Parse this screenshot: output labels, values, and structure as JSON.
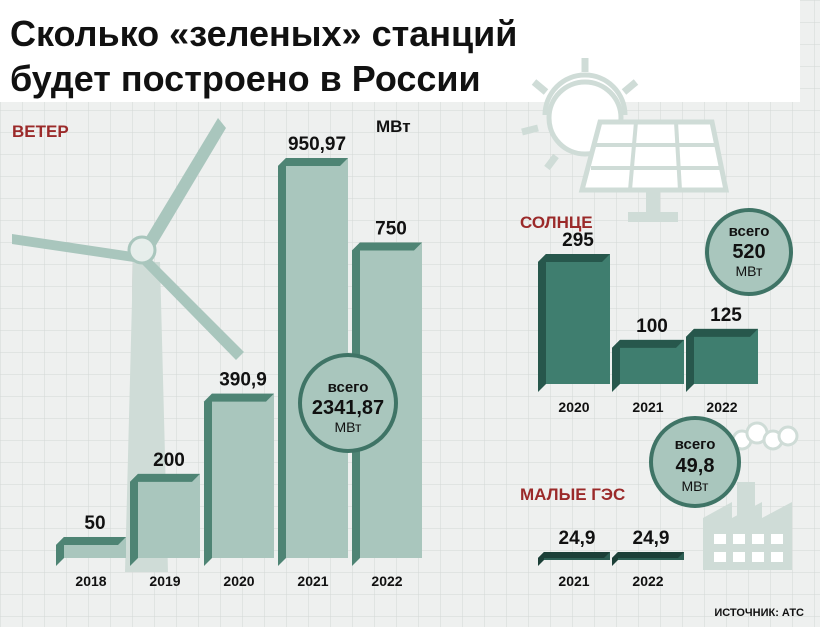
{
  "title": {
    "line1": "Сколько «зеленых» станций",
    "line2": "будет построено в России"
  },
  "source": "ИСТОЧНИК: АТС",
  "colors": {
    "grid_bg": "#eef0ef",
    "grid_line": "#d3d7d5",
    "wind_face": "#a9c6bd",
    "wind_dark": "#4e8474",
    "solar_face": "#3f7e6f",
    "solar_dark": "#27574c",
    "hydro_face": "#2c5e53",
    "hydro_dark": "#1b3f37",
    "badge_fill": "#a9c6bd",
    "badge_stroke": "#3f7466",
    "label_red": "#9b2a2a",
    "icon_light": "#cfdcd7"
  },
  "chart_data": [
    {
      "type": "bar",
      "section_label": "ВЕТЕР",
      "unit": "МВт",
      "categories": [
        "2018",
        "2019",
        "2020",
        "2021",
        "2022"
      ],
      "values": [
        50,
        200,
        390.9,
        950.97,
        750
      ],
      "value_labels": [
        "50",
        "200",
        "390,9",
        "950,97",
        "750"
      ],
      "total": {
        "line1": "всего",
        "line2": "2341,87",
        "line3": "МВт"
      }
    },
    {
      "type": "bar",
      "section_label": "СОЛНЦЕ",
      "categories": [
        "2020",
        "2021",
        "2022"
      ],
      "values": [
        295,
        100,
        125
      ],
      "value_labels": [
        "295",
        "100",
        "125"
      ],
      "total": {
        "line1": "всего",
        "line2": "520",
        "line3": "МВт"
      }
    },
    {
      "type": "bar",
      "section_label": "МАЛЫЕ ГЭС",
      "categories": [
        "2021",
        "2022"
      ],
      "values": [
        24.9,
        24.9
      ],
      "value_labels": [
        "24,9",
        "24,9"
      ],
      "total": {
        "line1": "всего",
        "line2": "49,8",
        "line3": "МВт"
      }
    }
  ]
}
